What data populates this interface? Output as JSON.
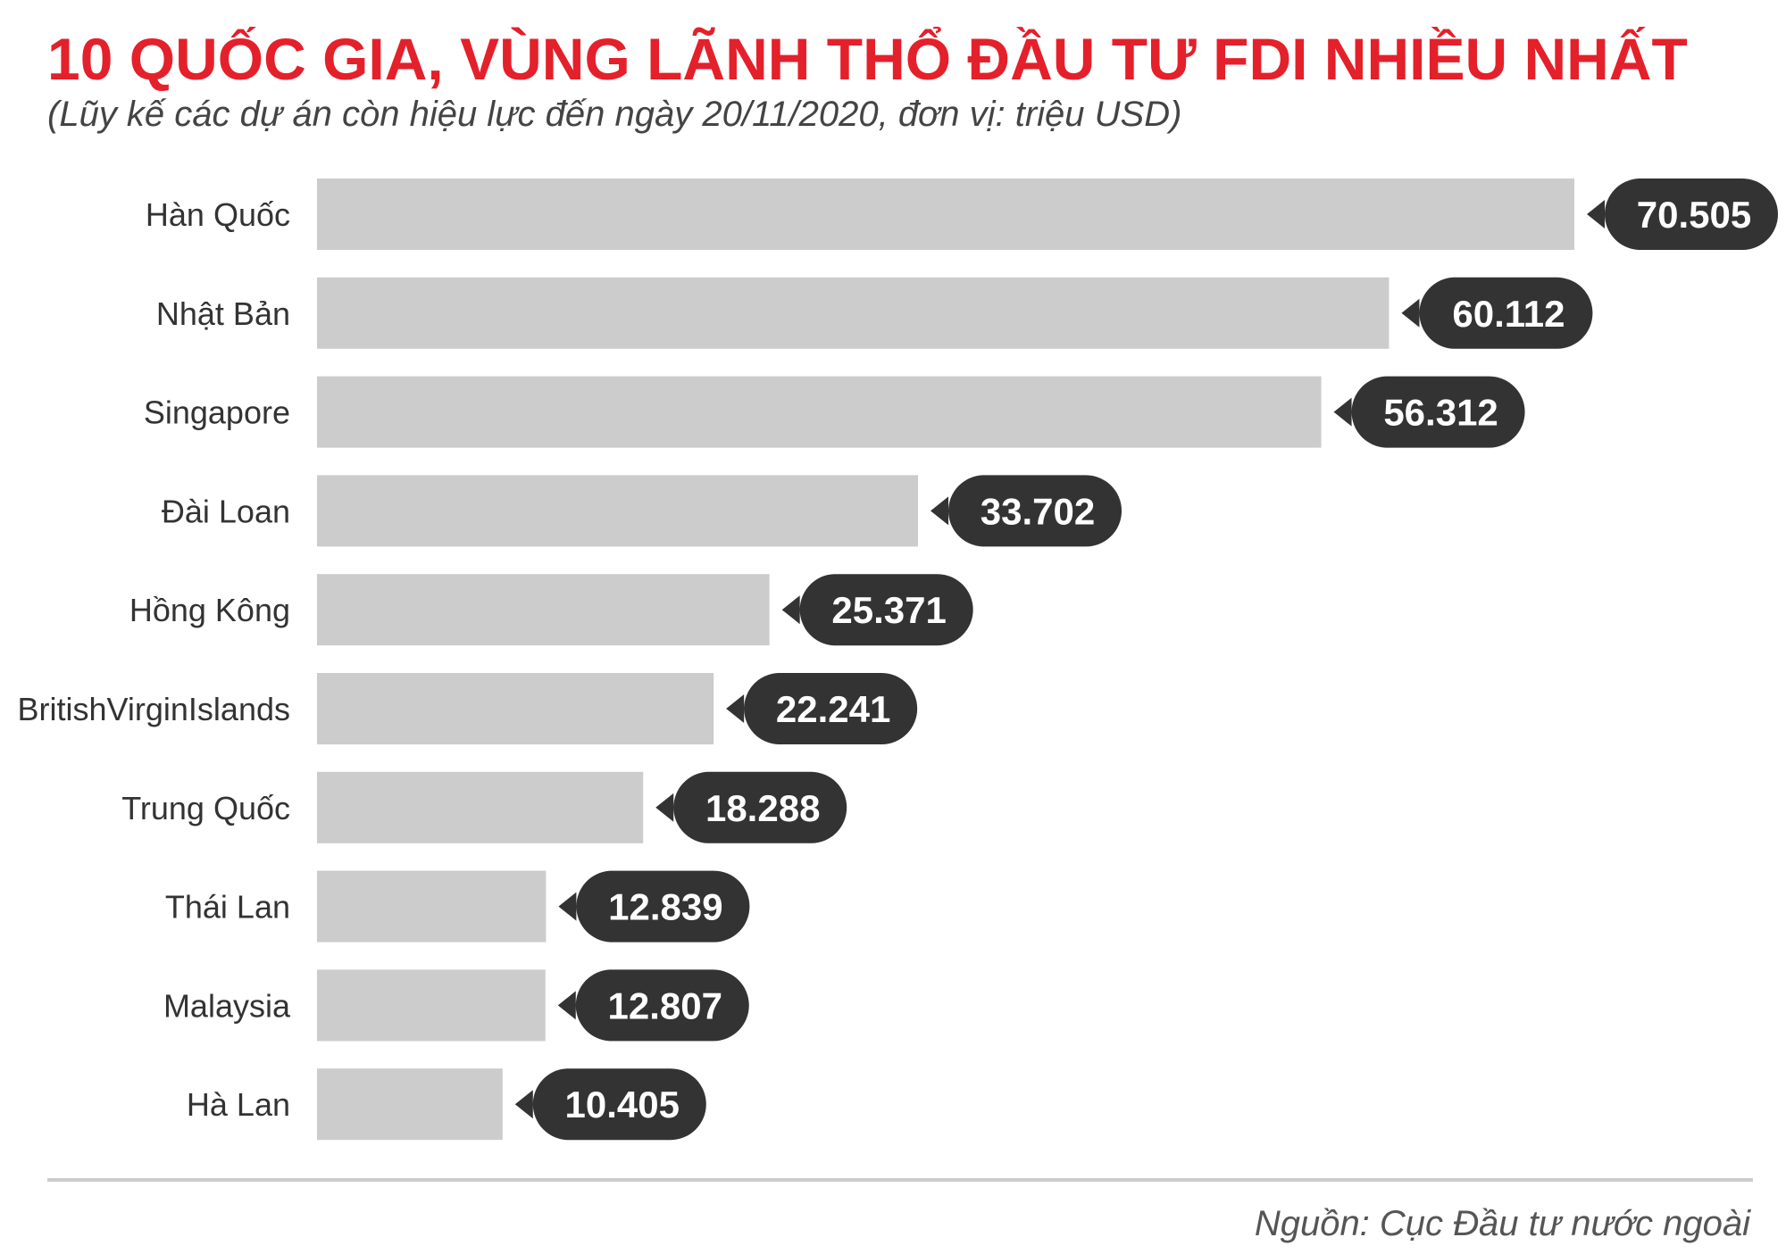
{
  "header": {
    "title": "10 QUỐC GIA, VÙNG LÃNH THỔ ĐẦU TƯ FDI NHIỀU NHẤT",
    "subtitle": "(Lũy kế các dự án còn hiệu lực đến ngày 20/11/2020, đơn vị: triệu USD)"
  },
  "footer": {
    "source": "Nguồn: Cục Đầu tư nước ngoài"
  },
  "colors": {
    "title": "#e4202b",
    "bar": "#cccccc",
    "label_bubble": "#333333",
    "label_text": "#ffffff",
    "category_text": "#333333"
  },
  "chart_data": {
    "type": "bar",
    "orientation": "horizontal",
    "categories": [
      "Hàn Quốc",
      "Nhật Bản",
      "Singapore",
      "Đài Loan",
      "Hồng Kông",
      "BritishVirginIslands",
      "Trung Quốc",
      "Thái Lan",
      "Malaysia",
      "Hà Lan"
    ],
    "values": [
      70505,
      60112,
      56312,
      33702,
      25371,
      22241,
      18288,
      12839,
      12807,
      10405
    ],
    "value_labels": [
      "70.505",
      "60.112",
      "56.312",
      "33.702",
      "25.371",
      "22.241",
      "18.288",
      "12.839",
      "12.807",
      "10.405"
    ],
    "xlim": [
      0,
      70505
    ],
    "grid": false,
    "legend": "none"
  }
}
